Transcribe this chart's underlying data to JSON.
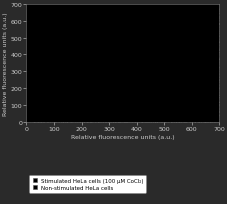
{
  "title": "",
  "xlabel": "Relative fluorescence units (a.u.)",
  "ylabel": "Relative fluorescence units (a.u.)",
  "xlim": [
    0,
    700
  ],
  "ylim": [
    0,
    700
  ],
  "xticks": [
    0,
    100,
    200,
    300,
    400,
    500,
    600,
    700
  ],
  "yticks": [
    0,
    100,
    200,
    300,
    400,
    500,
    600,
    700
  ],
  "legend_labels": [
    "Stimulated HeLa cells (100 μM CoCl₂)",
    "Non-stimulated HeLa cells"
  ],
  "fig_bg_color": "#2a2a2a",
  "plot_bg_color": "#000000",
  "tick_fontsize": 4.5,
  "label_fontsize": 4.5,
  "tick_color": "#cccccc",
  "label_color": "#cccccc",
  "spine_color": "#888888"
}
